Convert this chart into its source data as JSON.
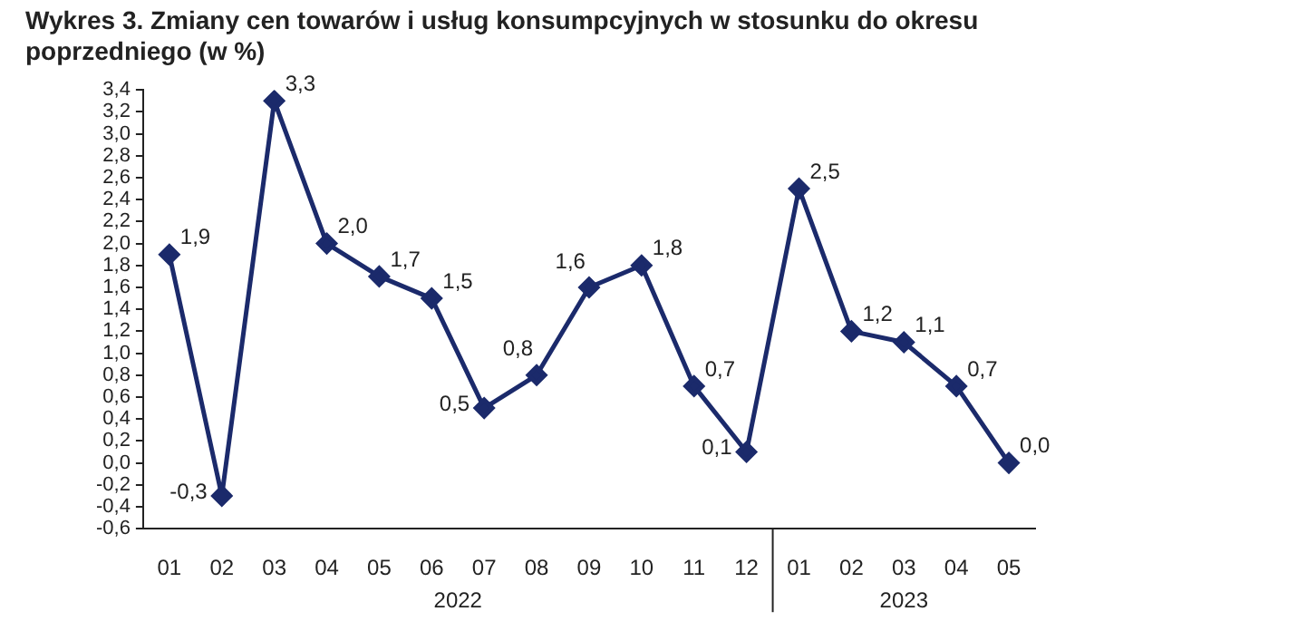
{
  "chart_data": {
    "type": "line",
    "title": "Wykres 3. Zmiany cen towarów i usług konsumpcyjnych w stosunku do okresu poprzedniego (w %)",
    "categories": [
      "01",
      "02",
      "03",
      "04",
      "05",
      "06",
      "07",
      "08",
      "09",
      "10",
      "11",
      "12",
      "01",
      "02",
      "03",
      "04",
      "05"
    ],
    "series": [
      {
        "color": "#1b2a6b",
        "values": [
          1.9,
          -0.3,
          3.3,
          2.0,
          1.7,
          1.5,
          0.5,
          0.8,
          1.6,
          1.8,
          0.7,
          0.1,
          2.5,
          1.2,
          1.1,
          0.7,
          0.0
        ],
        "value_labels": [
          "1,9",
          "-0,3",
          "3,3",
          "2,0",
          "1,7",
          "1,5",
          "0,5",
          "0,8",
          "1,6",
          "1,8",
          "0,7",
          "0,1",
          "2,5",
          "1,2",
          "1,1",
          "0,7",
          "0,0"
        ]
      }
    ],
    "ylim": [
      -0.6,
      3.4
    ],
    "yticks": [
      {
        "value": -0.6,
        "label": "-0,6"
      },
      {
        "value": -0.4,
        "label": "-0,4"
      },
      {
        "value": -0.2,
        "label": "-0,2"
      },
      {
        "value": 0,
        "label": "0,0"
      },
      {
        "value": 0.2,
        "label": "0,2"
      },
      {
        "value": 0.4,
        "label": "0,4"
      },
      {
        "value": 0.6,
        "label": "0,6"
      },
      {
        "value": 0.8,
        "label": "0,8"
      },
      {
        "value": 1.0,
        "label": "1,0"
      },
      {
        "value": 1.2,
        "label": "1,2"
      },
      {
        "value": 1.4,
        "label": "1,4"
      },
      {
        "value": 1.6,
        "label": "1,6"
      },
      {
        "value": 1.8,
        "label": "1,8"
      },
      {
        "value": 2.0,
        "label": "2,0"
      },
      {
        "value": 2.2,
        "label": "2,2"
      },
      {
        "value": 2.4,
        "label": "2,4"
      },
      {
        "value": 2.6,
        "label": "2,6"
      },
      {
        "value": 2.8,
        "label": "2,8"
      },
      {
        "value": 3.0,
        "label": "3,0"
      },
      {
        "value": 3.2,
        "label": "3,2"
      },
      {
        "value": 3.4,
        "label": "3,4"
      }
    ],
    "annotations": [
      "2022",
      "2023"
    ],
    "grid": false,
    "legend": false,
    "marker": "diamond",
    "line_style": "solid"
  }
}
